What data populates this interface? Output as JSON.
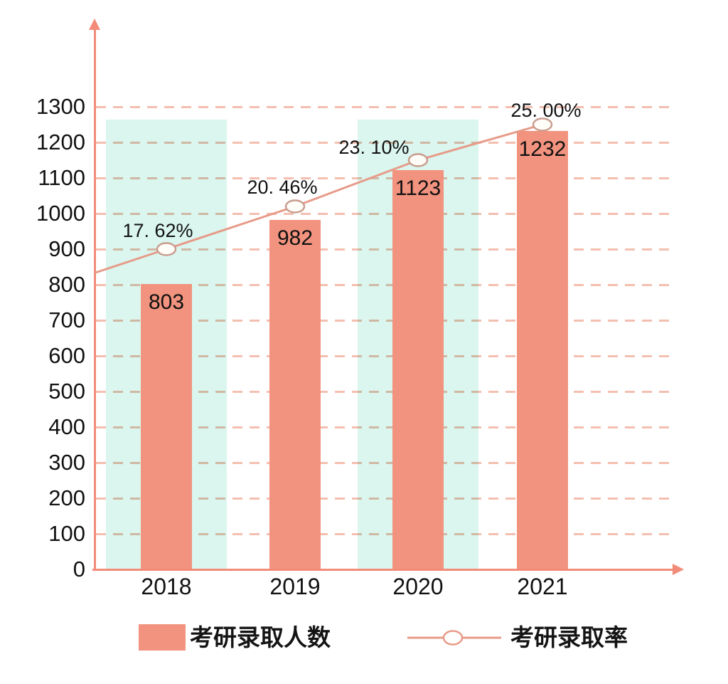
{
  "chart_data": {
    "type": "combo-bar-line",
    "categories": [
      "2018",
      "2019",
      "2020",
      "2021"
    ],
    "series": [
      {
        "name": "考研录取人数",
        "type": "bar",
        "values": [
          803,
          982,
          1123,
          1232
        ],
        "value_labels": [
          "803",
          "982",
          "1123",
          "1232"
        ]
      },
      {
        "name": "考研录取率",
        "type": "line",
        "values_percent": [
          17.62,
          20.46,
          23.1,
          25.0
        ],
        "point_labels": [
          "17. 62%",
          "20. 46%",
          "23. 10%",
          "25. 00%"
        ],
        "plotted_left_axis_positions": [
          900,
          1020,
          1150,
          1250
        ]
      }
    ],
    "title": "",
    "xlabel": "",
    "ylabel": "",
    "y_axis": {
      "min": 0,
      "max": 1300,
      "tick_step": 100,
      "tick_labels": [
        "0",
        "100",
        "200",
        "300",
        "400",
        "500",
        "600",
        "700",
        "800",
        "900",
        "1000",
        "1100",
        "1200",
        "1300"
      ]
    },
    "grid": "dashed-horizontal",
    "legend_position": "bottom",
    "highlight_band_categories": [
      "2018",
      "2020"
    ],
    "colors": {
      "bar": "#F1937E",
      "highlight_band": "#DAF6EE",
      "axis": "#F28B78",
      "trend_line": "#E79B89",
      "marker_stroke": "#C99C8E",
      "marker_fill": "#FFFDF8",
      "grid": "#F4BFB0",
      "text": "#111111"
    }
  },
  "legend": {
    "items": [
      {
        "label": "考研录取人数",
        "swatch": "bar-square"
      },
      {
        "label": "考研录取率",
        "swatch": "line-with-circle-marker"
      }
    ]
  }
}
